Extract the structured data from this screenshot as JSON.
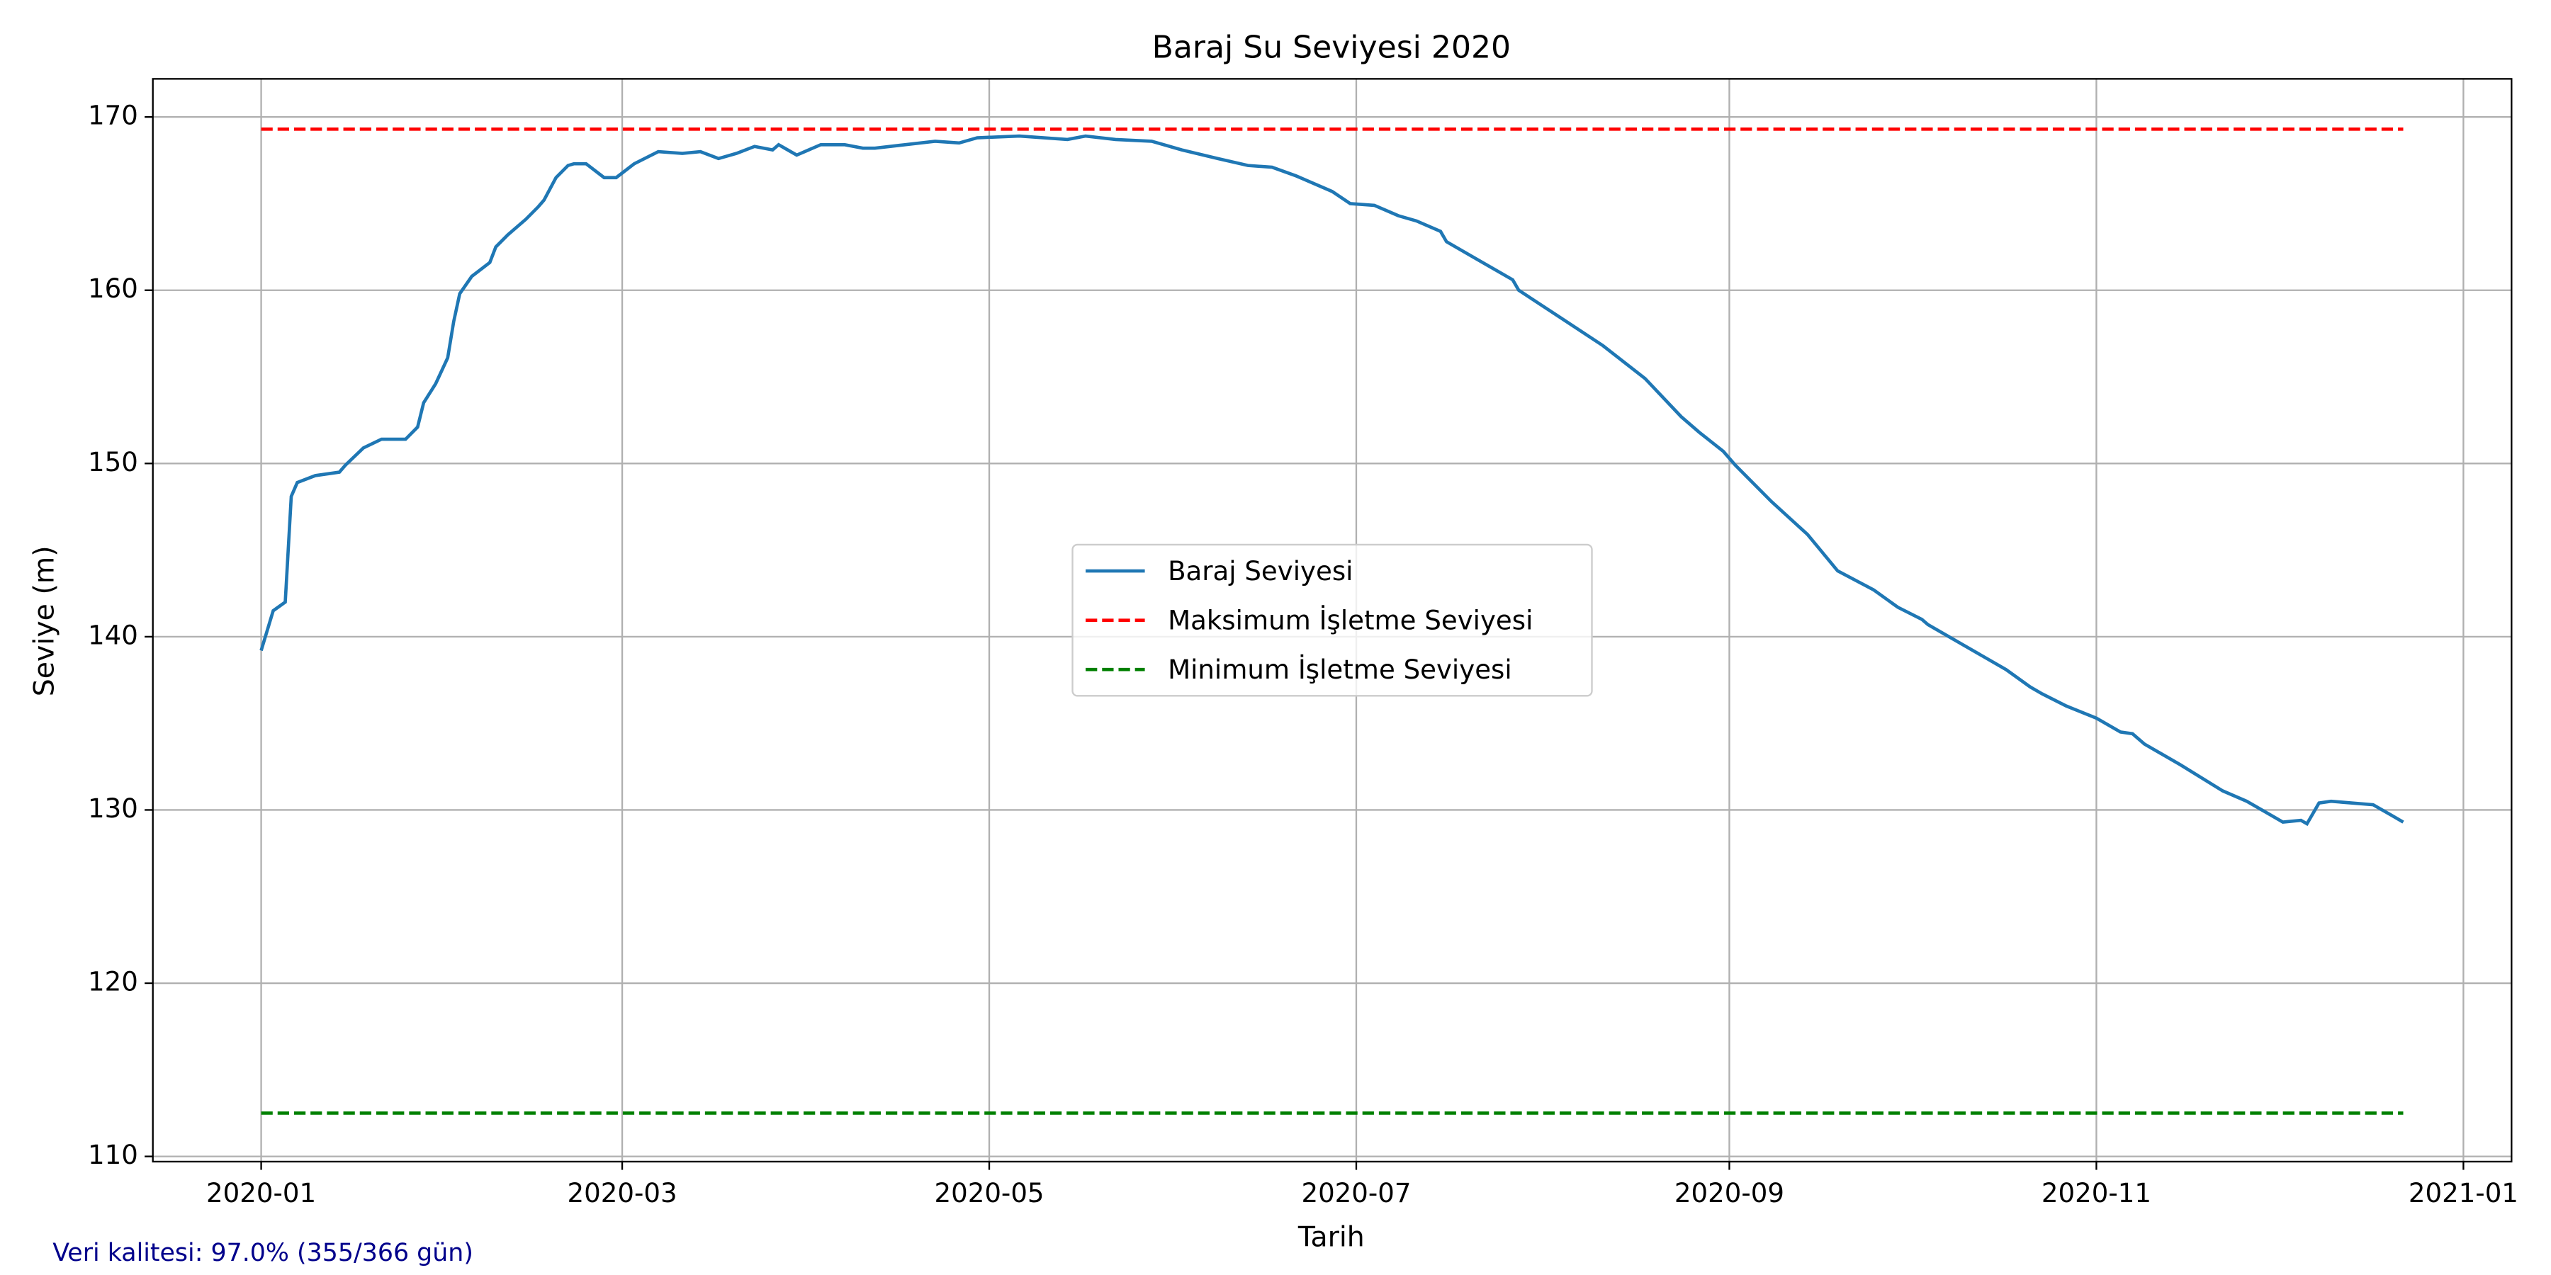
{
  "chart_data": {
    "type": "line",
    "title": "Baraj Su Seviyesi 2020",
    "xlabel": "Tarih",
    "ylabel": "Seviye (m)",
    "annotation": "Veri kalitesi: 97.0% (355/366 gün)",
    "x": [
      "2020-01-01",
      "2020-01-03",
      "2020-01-05",
      "2020-01-06",
      "2020-01-07",
      "2020-01-10",
      "2020-01-14",
      "2020-01-15",
      "2020-01-18",
      "2020-01-21",
      "2020-01-25",
      "2020-01-27",
      "2020-01-28",
      "2020-01-30",
      "2020-02-01",
      "2020-02-02",
      "2020-02-03",
      "2020-02-05",
      "2020-02-08",
      "2020-02-09",
      "2020-02-11",
      "2020-02-14",
      "2020-02-16",
      "2020-02-17",
      "2020-02-19",
      "2020-02-21",
      "2020-02-22",
      "2020-02-24",
      "2020-02-27",
      "2020-02-29",
      "2020-03-03",
      "2020-03-07",
      "2020-03-11",
      "2020-03-14",
      "2020-03-17",
      "2020-03-20",
      "2020-03-23",
      "2020-03-26",
      "2020-03-27",
      "2020-03-28",
      "2020-03-30",
      "2020-04-03",
      "2020-04-07",
      "2020-04-10",
      "2020-04-12",
      "2020-04-17",
      "2020-04-22",
      "2020-04-26",
      "2020-04-29",
      "2020-05-06",
      "2020-05-14",
      "2020-05-17",
      "2020-05-22",
      "2020-05-28",
      "2020-06-02",
      "2020-06-08",
      "2020-06-13",
      "2020-06-17",
      "2020-06-21",
      "2020-06-27",
      "2020-06-30",
      "2020-07-04",
      "2020-07-08",
      "2020-07-11",
      "2020-07-15",
      "2020-07-16",
      "2020-07-21",
      "2020-07-27",
      "2020-07-28",
      "2020-08-04",
      "2020-08-11",
      "2020-08-18",
      "2020-08-24",
      "2020-08-27",
      "2020-08-31",
      "2020-09-02",
      "2020-09-08",
      "2020-09-14",
      "2020-09-19",
      "2020-09-25",
      "2020-09-29",
      "2020-10-03",
      "2020-10-04",
      "2020-10-10",
      "2020-10-17",
      "2020-10-21",
      "2020-10-23",
      "2020-10-27",
      "2020-11-01",
      "2020-11-05",
      "2020-11-07",
      "2020-11-09",
      "2020-11-15",
      "2020-11-22",
      "2020-11-26",
      "2020-12-02",
      "2020-12-05",
      "2020-12-06",
      "2020-12-08",
      "2020-12-10",
      "2020-12-17",
      "2020-12-20",
      "2020-12-22"
    ],
    "series": [
      {
        "name": "Baraj Seviyesi",
        "color": "#1f77b4",
        "values": [
          139.2,
          141.5,
          142.0,
          148.1,
          148.9,
          149.3,
          149.5,
          149.9,
          150.9,
          151.4,
          151.4,
          152.1,
          153.5,
          154.6,
          156.1,
          158.2,
          159.8,
          160.8,
          161.6,
          162.5,
          163.2,
          164.1,
          164.8,
          165.2,
          166.5,
          167.2,
          167.3,
          167.3,
          166.5,
          166.5,
          167.3,
          168.0,
          167.9,
          168.0,
          167.6,
          167.9,
          168.3,
          168.1,
          168.4,
          168.2,
          167.8,
          168.4,
          168.4,
          168.2,
          168.2,
          168.4,
          168.6,
          168.5,
          168.8,
          168.9,
          168.7,
          168.9,
          168.7,
          168.6,
          168.1,
          167.6,
          167.2,
          167.1,
          166.6,
          165.7,
          165.0,
          164.9,
          164.3,
          164.0,
          163.4,
          162.8,
          161.8,
          160.6,
          160.0,
          158.4,
          156.8,
          154.9,
          152.7,
          151.8,
          150.7,
          149.9,
          147.8,
          145.9,
          143.8,
          142.7,
          141.7,
          141.0,
          140.7,
          139.5,
          138.1,
          137.1,
          136.7,
          136.0,
          135.3,
          134.5,
          134.4,
          133.8,
          132.6,
          131.1,
          130.5,
          129.3,
          129.4,
          129.2,
          130.4,
          130.5,
          130.3,
          129.7,
          129.3
        ]
      }
    ],
    "reference_lines": [
      {
        "name": "Maksimum İşletme Seviyesi",
        "color": "#ff0000",
        "value": 169.3
      },
      {
        "name": "Minimum İşletme Seviyesi",
        "color": "#008000",
        "value": 112.5
      }
    ],
    "xlim": [
      "2019-12-14",
      "2021-01-09"
    ],
    "xticks": [
      {
        "value": "2020-01-01",
        "label": "2020-01"
      },
      {
        "value": "2020-03-01",
        "label": "2020-03"
      },
      {
        "value": "2020-05-01",
        "label": "2020-05"
      },
      {
        "value": "2020-07-01",
        "label": "2020-07"
      },
      {
        "value": "2020-09-01",
        "label": "2020-09"
      },
      {
        "value": "2020-11-01",
        "label": "2020-11"
      },
      {
        "value": "2021-01-01",
        "label": "2021-01"
      }
    ],
    "ylim": [
      109.7,
      172.2
    ],
    "yticks": [
      110,
      120,
      130,
      140,
      150,
      160,
      170
    ],
    "grid": true,
    "legend": "center"
  }
}
